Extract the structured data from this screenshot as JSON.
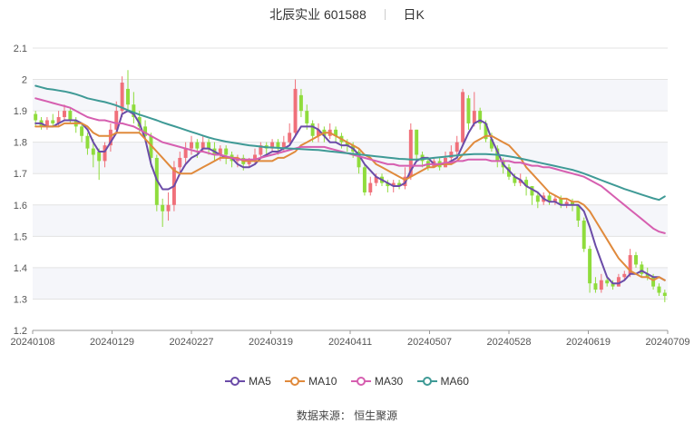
{
  "title": {
    "name": "北辰实业",
    "code": "601588",
    "period": "日K"
  },
  "chart_data": {
    "type": "candlestick",
    "y_ticks": [
      "1.2",
      "1.3",
      "1.4",
      "1.5",
      "1.6",
      "1.7",
      "1.8",
      "1.9",
      "2",
      "2.1"
    ],
    "ylim": [
      1.2,
      2.1
    ],
    "x_ticks": [
      "20240108",
      "20240129",
      "20240227",
      "20240319",
      "20240411",
      "20240507",
      "20240528",
      "20240619",
      "20240709"
    ],
    "up_color": "#f0707a",
    "down_color": "#8fdc3c",
    "candles": [
      [
        1.89,
        1.87,
        1.9,
        1.85
      ],
      [
        1.87,
        1.85,
        1.88,
        1.84
      ],
      [
        1.85,
        1.87,
        1.88,
        1.84
      ],
      [
        1.87,
        1.86,
        1.89,
        1.85
      ],
      [
        1.86,
        1.88,
        1.9,
        1.85
      ],
      [
        1.88,
        1.9,
        1.92,
        1.87
      ],
      [
        1.9,
        1.87,
        1.91,
        1.86
      ],
      [
        1.87,
        1.85,
        1.88,
        1.83
      ],
      [
        1.85,
        1.82,
        1.86,
        1.8
      ],
      [
        1.82,
        1.78,
        1.83,
        1.76
      ],
      [
        1.78,
        1.76,
        1.81,
        1.72
      ],
      [
        1.77,
        1.74,
        1.78,
        1.68
      ],
      [
        1.74,
        1.79,
        1.8,
        1.72
      ],
      [
        1.79,
        1.84,
        1.86,
        1.77
      ],
      [
        1.84,
        1.9,
        1.93,
        1.83
      ],
      [
        1.9,
        1.99,
        2.01,
        1.88
      ],
      [
        1.97,
        1.92,
        2.03,
        1.9
      ],
      [
        1.92,
        1.88,
        1.96,
        1.86
      ],
      [
        1.88,
        1.85,
        1.9,
        1.83
      ],
      [
        1.85,
        1.82,
        1.87,
        1.8
      ],
      [
        1.82,
        1.75,
        1.83,
        1.72
      ],
      [
        1.75,
        1.6,
        1.76,
        1.58
      ],
      [
        1.6,
        1.58,
        1.62,
        1.53
      ],
      [
        1.58,
        1.6,
        1.64,
        1.55
      ],
      [
        1.6,
        1.72,
        1.74,
        1.58
      ],
      [
        1.72,
        1.75,
        1.77,
        1.7
      ],
      [
        1.75,
        1.78,
        1.8,
        1.73
      ],
      [
        1.78,
        1.8,
        1.82,
        1.76
      ],
      [
        1.8,
        1.78,
        1.81,
        1.75
      ],
      [
        1.78,
        1.8,
        1.82,
        1.77
      ],
      [
        1.8,
        1.78,
        1.81,
        1.76
      ],
      [
        1.78,
        1.76,
        1.8,
        1.74
      ],
      [
        1.76,
        1.78,
        1.79,
        1.74
      ],
      [
        1.78,
        1.76,
        1.79,
        1.73
      ],
      [
        1.76,
        1.74,
        1.77,
        1.72
      ],
      [
        1.74,
        1.75,
        1.76,
        1.72
      ],
      [
        1.75,
        1.73,
        1.76,
        1.71
      ],
      [
        1.73,
        1.74,
        1.75,
        1.72
      ],
      [
        1.74,
        1.76,
        1.78,
        1.73
      ],
      [
        1.76,
        1.79,
        1.8,
        1.75
      ],
      [
        1.79,
        1.78,
        1.8,
        1.76
      ],
      [
        1.78,
        1.8,
        1.81,
        1.77
      ],
      [
        1.8,
        1.78,
        1.81,
        1.76
      ],
      [
        1.78,
        1.8,
        1.82,
        1.77
      ],
      [
        1.8,
        1.83,
        1.86,
        1.79
      ],
      [
        1.83,
        1.97,
        2.0,
        1.82
      ],
      [
        1.95,
        1.9,
        1.97,
        1.88
      ],
      [
        1.9,
        1.86,
        1.92,
        1.84
      ],
      [
        1.86,
        1.82,
        1.87,
        1.8
      ],
      [
        1.82,
        1.84,
        1.86,
        1.8
      ],
      [
        1.84,
        1.82,
        1.85,
        1.8
      ],
      [
        1.82,
        1.84,
        1.86,
        1.81
      ],
      [
        1.84,
        1.82,
        1.85,
        1.8
      ],
      [
        1.82,
        1.8,
        1.83,
        1.78
      ],
      [
        1.8,
        1.79,
        1.81,
        1.77
      ],
      [
        1.79,
        1.77,
        1.8,
        1.75
      ],
      [
        1.77,
        1.72,
        1.78,
        1.7
      ],
      [
        1.72,
        1.64,
        1.73,
        1.63
      ],
      [
        1.64,
        1.67,
        1.69,
        1.63
      ],
      [
        1.67,
        1.69,
        1.7,
        1.66
      ],
      [
        1.69,
        1.67,
        1.7,
        1.66
      ],
      [
        1.67,
        1.66,
        1.68,
        1.64
      ],
      [
        1.66,
        1.67,
        1.68,
        1.64
      ],
      [
        1.67,
        1.66,
        1.68,
        1.65
      ],
      [
        1.66,
        1.69,
        1.72,
        1.65
      ],
      [
        1.69,
        1.84,
        1.86,
        1.68
      ],
      [
        1.84,
        1.76,
        1.84,
        1.74
      ],
      [
        1.76,
        1.74,
        1.77,
        1.72
      ],
      [
        1.74,
        1.72,
        1.75,
        1.71
      ],
      [
        1.72,
        1.74,
        1.75,
        1.72
      ],
      [
        1.74,
        1.72,
        1.75,
        1.71
      ],
      [
        1.72,
        1.75,
        1.77,
        1.72
      ],
      [
        1.75,
        1.77,
        1.79,
        1.74
      ],
      [
        1.77,
        1.8,
        1.82,
        1.76
      ],
      [
        1.8,
        1.96,
        1.97,
        1.79
      ],
      [
        1.94,
        1.86,
        1.95,
        1.84
      ],
      [
        1.86,
        1.9,
        1.96,
        1.85
      ],
      [
        1.9,
        1.86,
        1.91,
        1.84
      ],
      [
        1.86,
        1.81,
        1.87,
        1.8
      ],
      [
        1.81,
        1.78,
        1.83,
        1.77
      ],
      [
        1.78,
        1.74,
        1.79,
        1.72
      ],
      [
        1.74,
        1.72,
        1.75,
        1.7
      ],
      [
        1.72,
        1.69,
        1.73,
        1.68
      ],
      [
        1.69,
        1.67,
        1.7,
        1.66
      ],
      [
        1.67,
        1.68,
        1.7,
        1.66
      ],
      [
        1.68,
        1.66,
        1.69,
        1.63
      ],
      [
        1.66,
        1.63,
        1.66,
        1.6
      ],
      [
        1.63,
        1.61,
        1.64,
        1.59
      ],
      [
        1.61,
        1.63,
        1.64,
        1.6
      ],
      [
        1.63,
        1.61,
        1.64,
        1.6
      ],
      [
        1.61,
        1.62,
        1.63,
        1.6
      ],
      [
        1.62,
        1.6,
        1.63,
        1.59
      ],
      [
        1.6,
        1.61,
        1.62,
        1.59
      ],
      [
        1.61,
        1.6,
        1.62,
        1.58
      ],
      [
        1.6,
        1.55,
        1.6,
        1.53
      ],
      [
        1.55,
        1.46,
        1.56,
        1.45
      ],
      [
        1.46,
        1.35,
        1.47,
        1.32
      ],
      [
        1.35,
        1.33,
        1.37,
        1.32
      ],
      [
        1.33,
        1.36,
        1.38,
        1.32
      ],
      [
        1.36,
        1.35,
        1.37,
        1.34
      ],
      [
        1.35,
        1.34,
        1.36,
        1.33
      ],
      [
        1.34,
        1.37,
        1.38,
        1.34
      ],
      [
        1.37,
        1.38,
        1.39,
        1.36
      ],
      [
        1.38,
        1.44,
        1.46,
        1.37
      ],
      [
        1.44,
        1.41,
        1.45,
        1.4
      ],
      [
        1.41,
        1.38,
        1.42,
        1.37
      ],
      [
        1.38,
        1.37,
        1.4,
        1.36
      ],
      [
        1.37,
        1.34,
        1.38,
        1.33
      ],
      [
        1.34,
        1.32,
        1.35,
        1.31
      ],
      [
        1.32,
        1.31,
        1.33,
        1.29
      ]
    ],
    "series": [
      {
        "name": "MA5",
        "color": "#6b4ca8",
        "values": [
          1.86,
          1.86,
          1.85,
          1.85,
          1.86,
          1.87,
          1.87,
          1.87,
          1.86,
          1.84,
          1.8,
          1.77,
          1.77,
          1.8,
          1.83,
          1.89,
          1.9,
          1.89,
          1.86,
          1.81,
          1.73,
          1.68,
          1.65,
          1.65,
          1.66,
          1.7,
          1.73,
          1.75,
          1.76,
          1.78,
          1.78,
          1.77,
          1.76,
          1.75,
          1.75,
          1.73,
          1.72,
          1.72,
          1.73,
          1.75,
          1.76,
          1.77,
          1.77,
          1.78,
          1.79,
          1.82,
          1.85,
          1.85,
          1.85,
          1.84,
          1.82,
          1.8,
          1.8,
          1.79,
          1.79,
          1.78,
          1.76,
          1.73,
          1.71,
          1.69,
          1.68,
          1.67,
          1.66,
          1.66,
          1.67,
          1.71,
          1.74,
          1.75,
          1.75,
          1.73,
          1.73,
          1.73,
          1.74,
          1.75,
          1.79,
          1.83,
          1.86,
          1.87,
          1.86,
          1.81,
          1.77,
          1.73,
          1.71,
          1.69,
          1.68,
          1.66,
          1.65,
          1.64,
          1.62,
          1.61,
          1.61,
          1.6,
          1.6,
          1.6,
          1.6,
          1.58,
          1.53,
          1.47,
          1.42,
          1.37,
          1.35,
          1.35,
          1.36,
          1.38,
          1.38,
          1.39,
          1.38,
          1.37,
          1.37,
          1.36
        ]
      },
      {
        "name": "MA10",
        "color": "#e08a3c",
        "values": [
          1.85,
          1.85,
          1.85,
          1.85,
          1.85,
          1.86,
          1.86,
          1.86,
          1.86,
          1.85,
          1.83,
          1.82,
          1.82,
          1.82,
          1.83,
          1.83,
          1.83,
          1.83,
          1.83,
          1.81,
          1.79,
          1.77,
          1.75,
          1.73,
          1.71,
          1.7,
          1.7,
          1.7,
          1.71,
          1.72,
          1.73,
          1.74,
          1.75,
          1.75,
          1.75,
          1.75,
          1.74,
          1.74,
          1.74,
          1.74,
          1.74,
          1.74,
          1.75,
          1.75,
          1.76,
          1.77,
          1.79,
          1.8,
          1.81,
          1.82,
          1.83,
          1.83,
          1.82,
          1.81,
          1.8,
          1.79,
          1.78,
          1.76,
          1.75,
          1.73,
          1.72,
          1.71,
          1.7,
          1.69,
          1.68,
          1.69,
          1.7,
          1.71,
          1.72,
          1.72,
          1.73,
          1.73,
          1.73,
          1.74,
          1.76,
          1.78,
          1.8,
          1.81,
          1.82,
          1.82,
          1.81,
          1.8,
          1.79,
          1.77,
          1.75,
          1.72,
          1.7,
          1.68,
          1.66,
          1.64,
          1.63,
          1.62,
          1.62,
          1.61,
          1.61,
          1.6,
          1.58,
          1.55,
          1.52,
          1.49,
          1.46,
          1.43,
          1.41,
          1.39,
          1.38,
          1.37,
          1.37,
          1.36,
          1.37,
          1.36
        ]
      },
      {
        "name": "MA30",
        "color": "#d65fb0",
        "values": [
          1.94,
          1.935,
          1.93,
          1.925,
          1.92,
          1.915,
          1.91,
          1.9,
          1.89,
          1.88,
          1.875,
          1.87,
          1.87,
          1.865,
          1.86,
          1.86,
          1.855,
          1.85,
          1.84,
          1.83,
          1.82,
          1.81,
          1.8,
          1.795,
          1.79,
          1.785,
          1.78,
          1.775,
          1.77,
          1.77,
          1.765,
          1.76,
          1.76,
          1.755,
          1.75,
          1.745,
          1.745,
          1.745,
          1.745,
          1.75,
          1.755,
          1.76,
          1.765,
          1.77,
          1.775,
          1.78,
          1.785,
          1.785,
          1.785,
          1.785,
          1.785,
          1.78,
          1.775,
          1.77,
          1.765,
          1.76,
          1.755,
          1.75,
          1.745,
          1.74,
          1.735,
          1.73,
          1.73,
          1.725,
          1.725,
          1.725,
          1.725,
          1.725,
          1.73,
          1.73,
          1.73,
          1.735,
          1.735,
          1.74,
          1.74,
          1.745,
          1.745,
          1.745,
          1.745,
          1.74,
          1.74,
          1.74,
          1.74,
          1.735,
          1.735,
          1.73,
          1.725,
          1.725,
          1.72,
          1.72,
          1.715,
          1.71,
          1.705,
          1.7,
          1.695,
          1.69,
          1.68,
          1.67,
          1.66,
          1.645,
          1.63,
          1.615,
          1.6,
          1.585,
          1.57,
          1.555,
          1.54,
          1.525,
          1.515,
          1.51
        ]
      },
      {
        "name": "MA60",
        "color": "#3f9a96",
        "values": [
          1.98,
          1.975,
          1.97,
          1.968,
          1.965,
          1.962,
          1.958,
          1.953,
          1.947,
          1.94,
          1.936,
          1.932,
          1.928,
          1.923,
          1.917,
          1.91,
          1.902,
          1.895,
          1.888,
          1.882,
          1.876,
          1.87,
          1.863,
          1.857,
          1.851,
          1.845,
          1.839,
          1.833,
          1.827,
          1.821,
          1.815,
          1.81,
          1.806,
          1.802,
          1.799,
          1.796,
          1.793,
          1.79,
          1.788,
          1.786,
          1.784,
          1.783,
          1.782,
          1.781,
          1.78,
          1.779,
          1.778,
          1.777,
          1.776,
          1.775,
          1.773,
          1.771,
          1.769,
          1.767,
          1.765,
          1.763,
          1.761,
          1.759,
          1.757,
          1.755,
          1.753,
          1.751,
          1.749,
          1.747,
          1.746,
          1.745,
          1.745,
          1.746,
          1.748,
          1.75,
          1.752,
          1.754,
          1.756,
          1.758,
          1.76,
          1.761,
          1.762,
          1.762,
          1.762,
          1.761,
          1.76,
          1.758,
          1.755,
          1.752,
          1.748,
          1.744,
          1.74,
          1.736,
          1.732,
          1.728,
          1.724,
          1.72,
          1.716,
          1.712,
          1.706,
          1.7,
          1.693,
          1.686,
          1.679,
          1.672,
          1.665,
          1.658,
          1.651,
          1.645,
          1.639,
          1.633,
          1.627,
          1.621,
          1.616,
          1.627
        ]
      }
    ],
    "grid": true,
    "legend_position": "bottom-center"
  },
  "legend": [
    {
      "label": "MA5",
      "color": "#6b4ca8"
    },
    {
      "label": "MA10",
      "color": "#e08a3c"
    },
    {
      "label": "MA30",
      "color": "#d65fb0"
    },
    {
      "label": "MA60",
      "color": "#3f9a96"
    }
  ],
  "source": {
    "label": "数据来源：",
    "value": "恒生聚源"
  }
}
